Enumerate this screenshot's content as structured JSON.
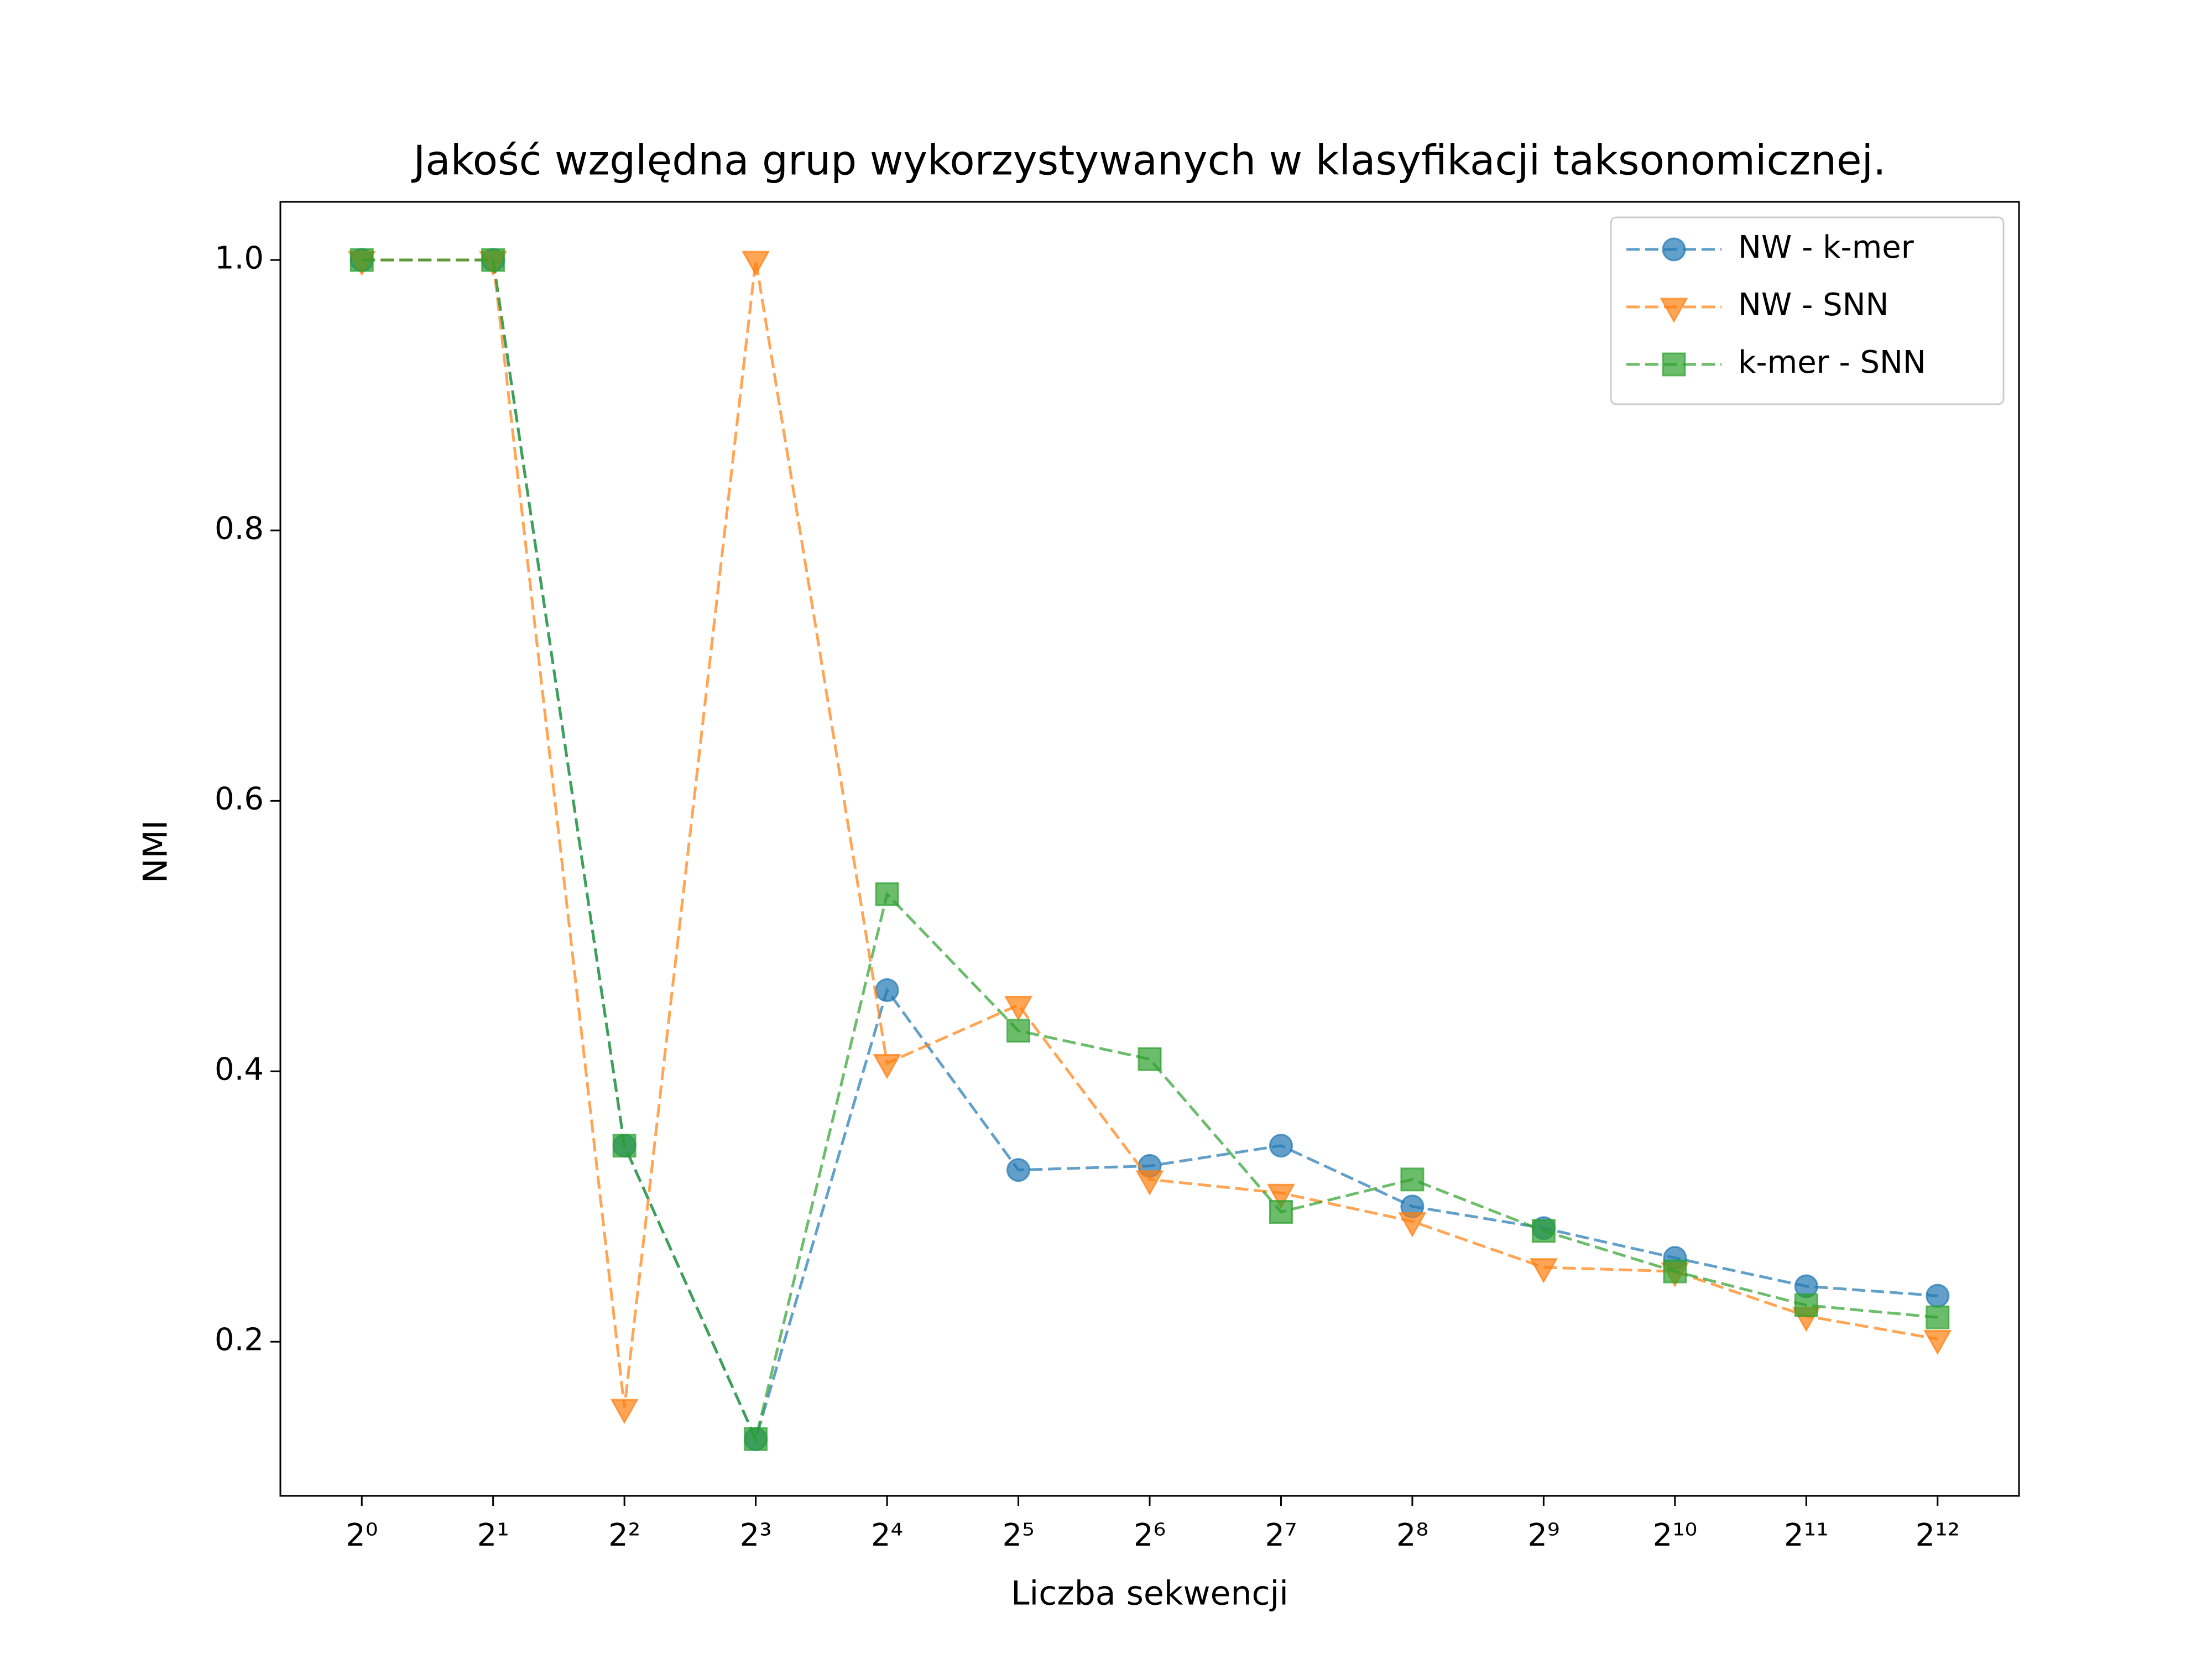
{
  "chart_data": {
    "type": "line",
    "title": "Jakość względna grup wykorzystywanych w klasyfikacji taksonomicznej.",
    "x_label": "Liczba sekwencji",
    "y_label": "NMI",
    "categories": [
      "2⁰",
      "2¹",
      "2²",
      "2³",
      "2⁴",
      "2⁵",
      "2⁶",
      "2⁷",
      "2⁸",
      "2⁹",
      "2¹⁰",
      "2¹¹",
      "2¹²"
    ],
    "series": [
      {
        "name": "NW - k-mer",
        "color": "#1f77b4",
        "marker": "circle",
        "values": [
          1.0,
          1.0,
          0.345,
          0.128,
          0.46,
          0.327,
          0.33,
          0.345,
          0.3,
          0.284,
          0.262,
          0.241,
          0.234
        ]
      },
      {
        "name": "NW - SNN",
        "color": "#ff7f0e",
        "marker": "triangle-down",
        "values": [
          1.0,
          1.0,
          0.151,
          1.0,
          0.406,
          0.449,
          0.32,
          0.31,
          0.289,
          0.255,
          0.252,
          0.219,
          0.202
        ]
      },
      {
        "name": "k-mer - SNN",
        "color": "#2ca02c",
        "marker": "square",
        "values": [
          1.0,
          1.0,
          0.345,
          0.128,
          0.531,
          0.43,
          0.409,
          0.296,
          0.32,
          0.282,
          0.252,
          0.227,
          0.218
        ]
      }
    ],
    "ylim": [
      0.086,
      1.043
    ],
    "yticks": [
      0.2,
      0.4,
      0.6,
      0.8,
      {
        "value": 1.0,
        "label": "1.0"
      }
    ],
    "line_style": "dashed",
    "legend": "upper right",
    "grid": false
  }
}
